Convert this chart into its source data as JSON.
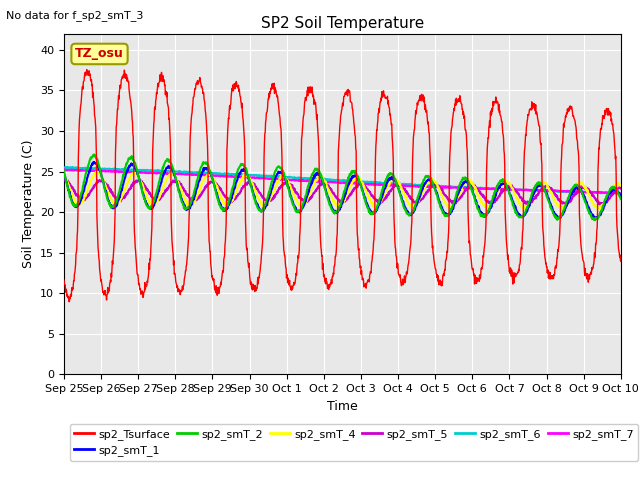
{
  "title": "SP2 Soil Temperature",
  "subtitle": "No data for f_sp2_smT_3",
  "xlabel": "Time",
  "ylabel": "Soil Temperature (C)",
  "ylim": [
    0,
    42
  ],
  "yticks": [
    0,
    5,
    10,
    15,
    20,
    25,
    30,
    35,
    40
  ],
  "background_color": "#e8e8e8",
  "annotation_text": "TZ_osu",
  "annotation_box_color": "#ffff99",
  "annotation_box_edge": "#999900",
  "series_colors": {
    "sp2_Tsurface": "#ff0000",
    "sp2_smT_1": "#0000ff",
    "sp2_smT_2": "#00cc00",
    "sp2_smT_4": "#ffff00",
    "sp2_smT_5": "#cc00cc",
    "sp2_smT_6": "#00cccc",
    "sp2_smT_7": "#ff00ff"
  },
  "xtick_labels": [
    "Sep 25",
    "Sep 26",
    "Sep 27",
    "Sep 28",
    "Sep 29",
    "Sep 30",
    "Oct 1",
    "Oct 2",
    "Oct 3",
    "Oct 4",
    "Oct 5",
    "Oct 6",
    "Oct 7",
    "Oct 8",
    "Oct 9",
    "Oct 10"
  ],
  "figsize": [
    6.4,
    4.8
  ],
  "dpi": 100
}
